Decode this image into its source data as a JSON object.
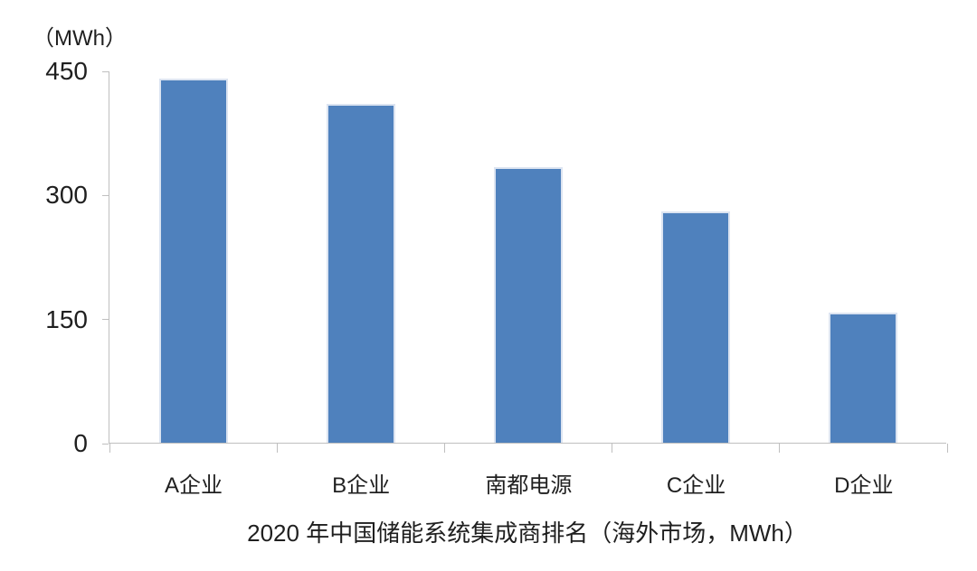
{
  "chart_data": {
    "type": "bar",
    "title": "2020 年中国储能系统集成商排名（海外市场，MWh）",
    "unit_label": "（MWh）",
    "categories": [
      "A企业",
      "B企业",
      "南都电源",
      "C企业",
      "D企业"
    ],
    "values": [
      440,
      410,
      333,
      280,
      157
    ],
    "xlabel": "",
    "ylabel": "MWh",
    "ylim": [
      0,
      450
    ],
    "yticks": [
      0,
      150,
      300,
      450
    ],
    "grid": false,
    "legend_position": "none",
    "bar_color": "#4F81BD",
    "bar_border_color": "#DCE4F1",
    "axis_color": "#BFBFBF",
    "text_color": "#1F1F1F"
  }
}
